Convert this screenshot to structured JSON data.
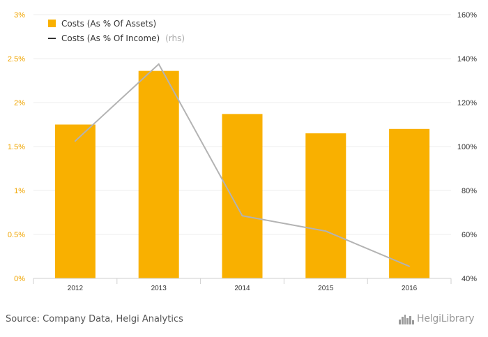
{
  "chart_data": {
    "type": "bar",
    "categories": [
      "2012",
      "2013",
      "2014",
      "2015",
      "2016"
    ],
    "series": [
      {
        "name": "Costs (As % Of Assets)",
        "type": "bar",
        "axis": "left",
        "color": "#f9b000",
        "values": [
          1.75,
          2.36,
          1.87,
          1.65,
          1.7
        ]
      },
      {
        "name": "Costs (As % Of Income)",
        "type": "line",
        "axis": "right",
        "color": "#b3b3b3",
        "values": [
          102.5,
          137.5,
          68.5,
          61.5,
          45.5
        ]
      }
    ],
    "left_axis": {
      "ylim": [
        0,
        3
      ],
      "ticks": [
        0,
        0.5,
        1,
        1.5,
        2,
        2.5,
        3
      ],
      "tick_labels": [
        "0%",
        "0.5%",
        "1%",
        "1.5%",
        "2%",
        "2.5%",
        "3%"
      ],
      "color": "#f0a500"
    },
    "right_axis": {
      "ylim": [
        40,
        160
      ],
      "ticks": [
        40,
        60,
        80,
        100,
        120,
        140,
        160
      ],
      "tick_labels": [
        "40%",
        "60%",
        "80%",
        "100%",
        "120%",
        "140%",
        "160%"
      ]
    },
    "grid": true,
    "legend": {
      "position": "top-left",
      "rhs_suffix": "(rhs)"
    }
  },
  "footer": {
    "source": "Source: Company Data, Helgi Analytics",
    "logo_text": "HelgiLibrary",
    "logo_icon": "skyline-icon"
  }
}
